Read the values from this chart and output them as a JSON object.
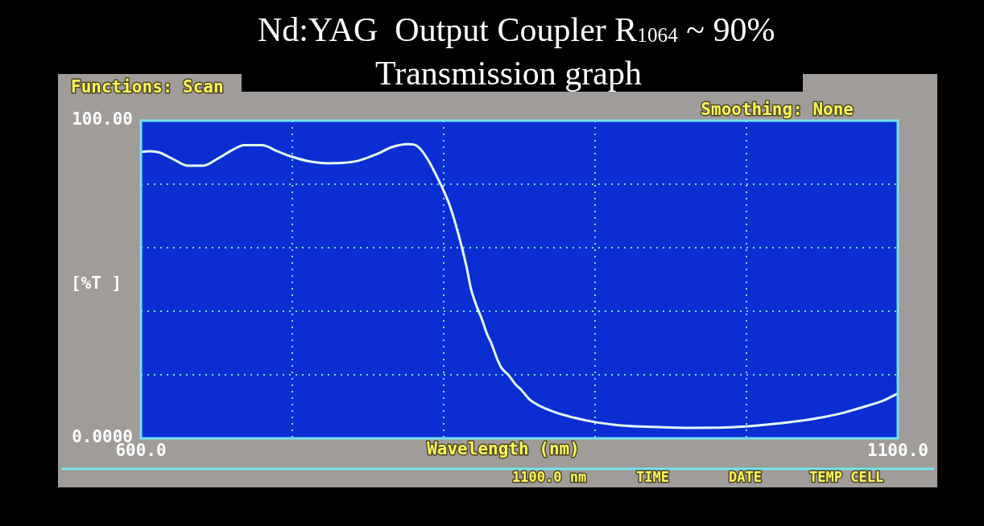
{
  "chart_data": {
    "type": "line",
    "title": "Nd:YAG  Output Coupler R$_{1064}$ ~ 90%",
    "subtitle": "Transmission graph",
    "xlabel": "Wavelength (nm)",
    "ylabel": "[%T ]",
    "annotations": [
      "Functions: Scan",
      "Smoothing: None",
      "1100.0 nm",
      "TIME",
      "DATE",
      "TEMP CELL"
    ],
    "x": [
      600,
      606,
      612,
      622,
      631,
      641,
      651,
      661,
      668,
      680,
      690,
      700,
      711,
      723,
      733,
      743,
      755,
      766,
      776,
      780,
      784,
      790,
      795,
      799,
      804,
      810,
      815,
      818,
      822,
      825,
      829,
      831,
      835,
      838,
      843,
      848,
      851,
      857,
      873,
      886,
      900,
      919,
      938,
      963,
      986,
      1006,
      1021,
      1041,
      1061,
      1081,
      1090,
      1100
    ],
    "series": [
      {
        "color": "#e6f7f2",
        "values": [
          90.2,
          90.4,
          90.0,
          87.7,
          85.8,
          85.8,
          88.1,
          90.9,
          92.3,
          92.3,
          90.4,
          88.6,
          87.2,
          86.6,
          86.7,
          87.3,
          89.3,
          91.7,
          92.6,
          92.5,
          91.4,
          87.4,
          82.9,
          79.0,
          73.3,
          63.8,
          54.2,
          47.1,
          41.3,
          37.8,
          32.4,
          30.5,
          25.4,
          22.3,
          19.8,
          16.7,
          15.4,
          12.1,
          8.3,
          6.5,
          5.1,
          4.0,
          3.6,
          3.3,
          3.4,
          4.0,
          4.7,
          5.9,
          7.7,
          10.4,
          11.8,
          14.1
        ]
      }
    ],
    "xlim": [
      600,
      1100
    ],
    "ylim": [
      0,
      100
    ],
    "xticks": [
      {
        "value": 600,
        "label": "600.0"
      },
      {
        "value": 700,
        "label": null
      },
      {
        "value": 800,
        "label": null
      },
      {
        "value": 900,
        "label": null
      },
      {
        "value": 1000,
        "label": null
      },
      {
        "value": 1100,
        "label": "1100.0"
      }
    ],
    "yticks": [
      {
        "value": 0,
        "label": "0.0000"
      },
      {
        "value": 20,
        "label": null
      },
      {
        "value": 40,
        "label": null
      },
      {
        "value": 60,
        "label": null
      },
      {
        "value": 80,
        "label": null
      },
      {
        "value": 100,
        "label": "100.00"
      }
    ],
    "grid": true,
    "marker": "none",
    "line_style": "solid"
  }
}
